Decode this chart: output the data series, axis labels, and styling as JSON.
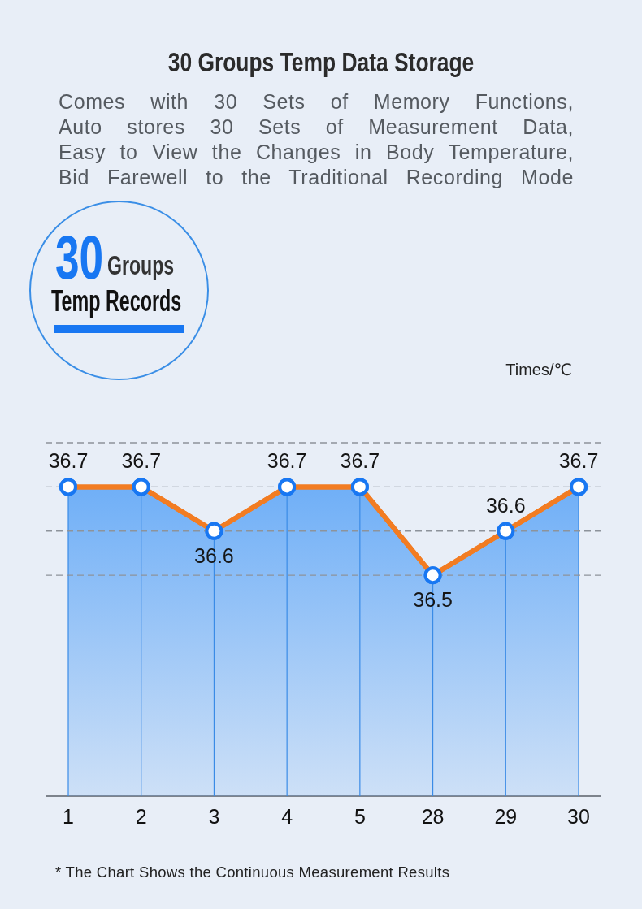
{
  "chart_data": {
    "type": "area",
    "title": "30 Groups Temp Data Storage",
    "subtitle": "Comes with 30 Sets of Memory Functions,\nAuto stores 30 Sets of Measurement Data,\nEasy to View the Changes in Body Temperature,\nBid Farewell to the Traditional Recording Mode",
    "ylabel": "Times/℃",
    "annotations": [
      "30",
      "Groups",
      "Temp Records",
      "* The Chart Shows the Continuous Measurement Results"
    ],
    "categories": [
      "1",
      "2",
      "3",
      "4",
      "5",
      "28",
      "29",
      "30"
    ],
    "series": [
      {
        "color": "#62a8f7",
        "values": [
          36.7,
          36.7,
          36.6,
          36.7,
          36.7,
          36.5,
          36.6,
          36.7
        ]
      }
    ],
    "ylim": [
      36.0,
      36.8
    ],
    "yticks": [
      {
        "value": 36.5,
        "label": null
      },
      {
        "value": 36.6,
        "label": null
      },
      {
        "value": 36.7,
        "label": null
      },
      {
        "value": 36.8,
        "label": null
      }
    ],
    "tick_labels": "x",
    "grid": true,
    "marker": "circle",
    "data_labels": true
  }
}
